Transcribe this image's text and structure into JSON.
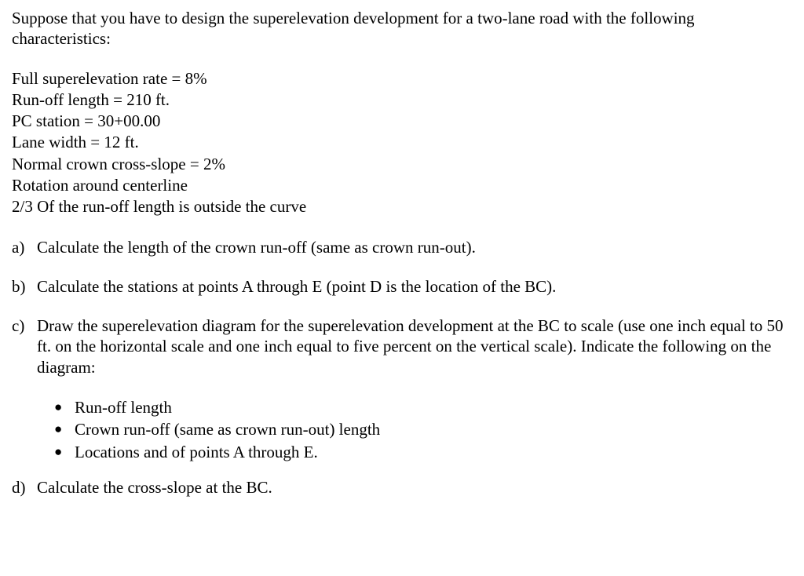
{
  "intro": "Suppose that you have to design the superelevation development for a two-lane road with the following characteristics:",
  "params": {
    "p1": "Full superelevation rate = 8%",
    "p2": "Run-off length = 210 ft.",
    "p3": "PC station = 30+00.00",
    "p4": "Lane width = 12 ft.",
    "p5": "Normal crown cross-slope = 2%",
    "p6": "Rotation around centerline",
    "p7": "2/3 Of the run-off length is outside the curve"
  },
  "questions": {
    "a": {
      "label": "a)",
      "text": "Calculate the length of the crown run-off (same as crown run-out)."
    },
    "b": {
      "label": "b)",
      "text": "Calculate the stations at points A through E (point D is the location of the BC)."
    },
    "c": {
      "label": "c)",
      "text": "Draw the superelevation diagram for the superelevation development at the BC to scale (use one inch equal to 50 ft. on the horizontal scale and one inch equal to five percent on the vertical scale). Indicate the following on the diagram:"
    },
    "d": {
      "label": "d)",
      "text": "Calculate the cross-slope at the BC."
    }
  },
  "bullets": {
    "b1": "Run-off length",
    "b2": "Crown run-off (same as crown run-out) length",
    "b3": "Locations and of points A through E."
  },
  "glyphs": {
    "bullet": "●"
  }
}
